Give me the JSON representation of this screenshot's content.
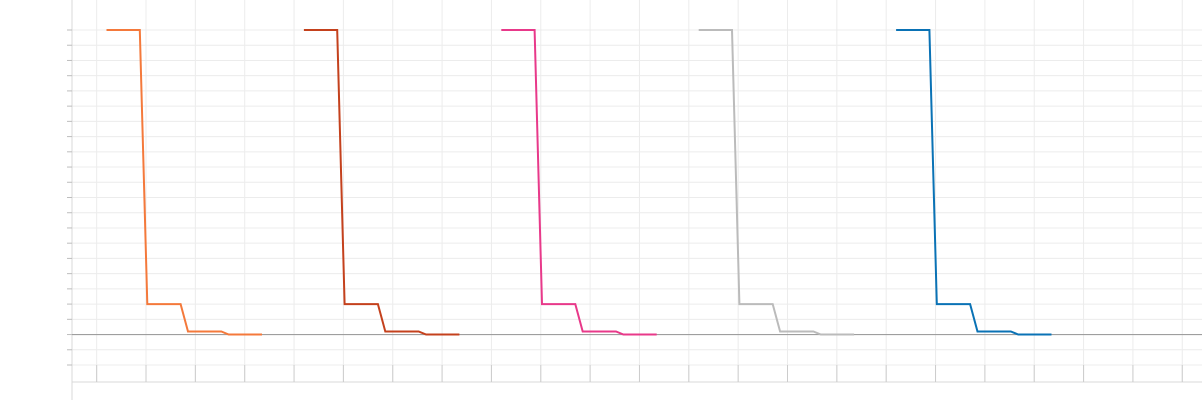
{
  "chart_data": {
    "type": "line",
    "title": "",
    "xlabel": "",
    "ylabel": "",
    "grid": true,
    "xlim": [
      0,
      22.9
    ],
    "ylim": [
      -1.0,
      10.0
    ],
    "series": [
      {
        "color": "#f4793b",
        "x": [
          0.7,
          1.375,
          1.525,
          2.2,
          2.35,
          3.025,
          3.175,
          3.85
        ],
        "y": [
          10.0,
          10.0,
          1.0,
          1.0,
          0.1,
          0.1,
          0.0,
          0.0
        ]
      },
      {
        "color": "#c4411d",
        "x": [
          4.7,
          5.375,
          5.525,
          6.2,
          6.35,
          7.025,
          7.175,
          7.85
        ],
        "y": [
          10.0,
          10.0,
          1.0,
          1.0,
          0.1,
          0.1,
          0.0,
          0.0
        ]
      },
      {
        "color": "#e8398a",
        "x": [
          8.7,
          9.375,
          9.525,
          10.2,
          10.35,
          11.025,
          11.175,
          11.85
        ],
        "y": [
          10.0,
          10.0,
          1.0,
          1.0,
          0.1,
          0.1,
          0.0,
          0.0
        ]
      },
      {
        "color": "#bbbbbb",
        "x": [
          12.7,
          13.375,
          13.525,
          14.2,
          14.35,
          15.025,
          15.175,
          15.85
        ],
        "y": [
          10.0,
          10.0,
          1.0,
          1.0,
          0.1,
          0.1,
          0.0,
          0.0
        ]
      },
      {
        "color": "#0a72b5",
        "x": [
          16.7,
          17.375,
          17.525,
          18.2,
          18.35,
          19.025,
          19.175,
          19.85
        ],
        "y": [
          10.0,
          10.0,
          1.0,
          1.0,
          0.1,
          0.1,
          0.0,
          0.0
        ]
      }
    ],
    "x_ticks": [
      0.5,
      1.5,
      2.5,
      3.5,
      4.5,
      5.5,
      6.5,
      7.5,
      8.5,
      9.5,
      10.5,
      11.5,
      12.5,
      13.5,
      14.5,
      15.5,
      16.5,
      17.5,
      18.5,
      19.5,
      20.5,
      21.5,
      22.5
    ],
    "y_ticks": [
      -1,
      0,
      1,
      2,
      3,
      4,
      5,
      6,
      7,
      8,
      9,
      10
    ],
    "zero_line": 0
  }
}
